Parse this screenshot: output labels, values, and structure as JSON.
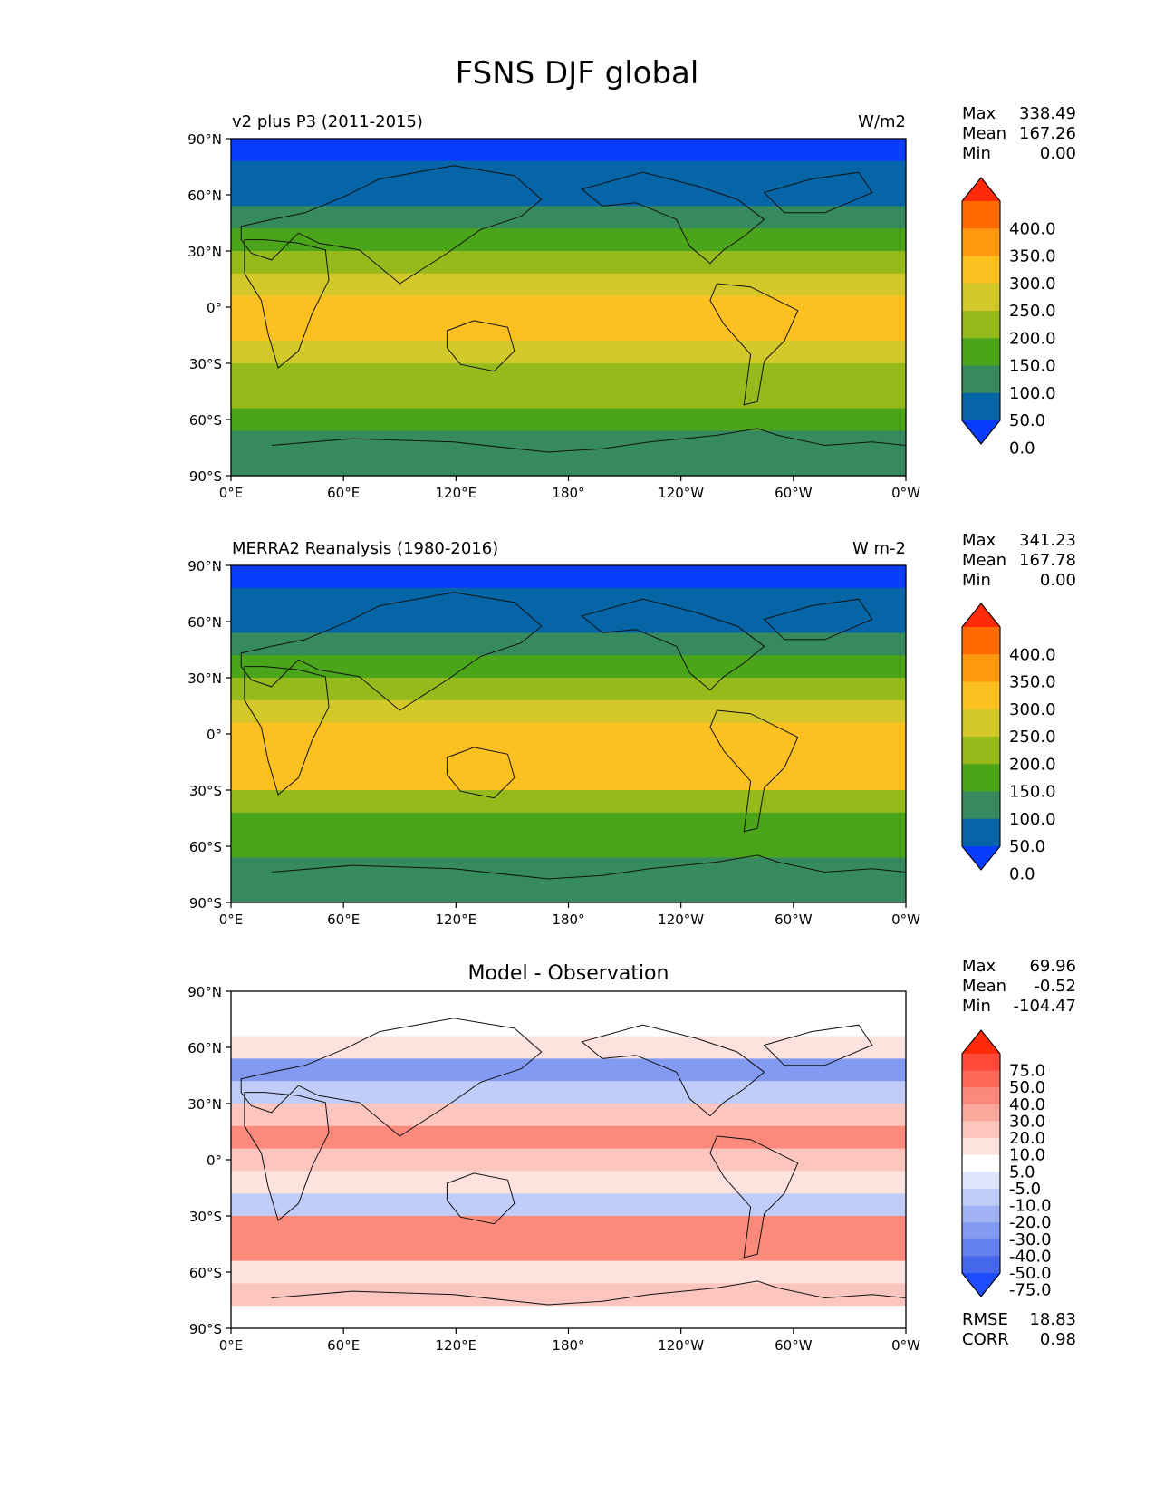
{
  "title": "FSNS DJF global",
  "panels": [
    {
      "left_title": "v2 plus P3 (2011-2015)",
      "right_title": "W/m2",
      "center_title": "",
      "stats": [
        [
          "Max",
          "338.49"
        ],
        [
          "Mean",
          "167.26"
        ],
        [
          "Min",
          "0.00"
        ]
      ],
      "colorbar": {
        "labels": [
          "400.0",
          "350.0",
          "300.0",
          "250.0",
          "200.0",
          "150.0",
          "100.0",
          "50.0",
          "0.0"
        ],
        "colors": [
          "#ff2a0a",
          "#ff6a00",
          "#ff9a10",
          "#fcc020",
          "#d3c82a",
          "#96b91c",
          "#4ba51a",
          "#368a5e",
          "#0565a6",
          "#0a3cff"
        ]
      },
      "bands": [
        "#0a3cff",
        "#0565a6",
        "#0565a6",
        "#368a5e",
        "#4ba51a",
        "#96b91c",
        "#d3c82a",
        "#fcc020",
        "#fcc020",
        "#d3c82a",
        "#96b91c",
        "#96b91c",
        "#4ba51a",
        "#368a5e",
        "#368a5e"
      ]
    },
    {
      "left_title": "MERRA2 Reanalysis (1980-2016)",
      "right_title": "W m-2",
      "center_title": "",
      "stats": [
        [
          "Max",
          "341.23"
        ],
        [
          "Mean",
          "167.78"
        ],
        [
          "Min",
          "0.00"
        ]
      ],
      "colorbar": {
        "labels": [
          "400.0",
          "350.0",
          "300.0",
          "250.0",
          "200.0",
          "150.0",
          "100.0",
          "50.0",
          "0.0"
        ],
        "colors": [
          "#ff2a0a",
          "#ff6a00",
          "#ff9a10",
          "#fcc020",
          "#d3c82a",
          "#96b91c",
          "#4ba51a",
          "#368a5e",
          "#0565a6",
          "#0a3cff"
        ]
      },
      "bands": [
        "#0a3cff",
        "#0565a6",
        "#0565a6",
        "#368a5e",
        "#4ba51a",
        "#96b91c",
        "#d3c82a",
        "#fcc020",
        "#fcc020",
        "#fcc020",
        "#96b91c",
        "#4ba51a",
        "#4ba51a",
        "#368a5e",
        "#368a5e"
      ]
    },
    {
      "left_title": "",
      "right_title": "",
      "center_title": "Model - Observation",
      "stats": [
        [
          "Max",
          "69.96"
        ],
        [
          "Mean",
          "-0.52"
        ],
        [
          "Min",
          "-104.47"
        ]
      ],
      "extra_stats": [
        [
          "RMSE",
          "18.83"
        ],
        [
          "CORR",
          "0.98"
        ]
      ],
      "colorbar": {
        "labels": [
          "75.0",
          "50.0",
          "40.0",
          "30.0",
          "20.0",
          "10.0",
          "5.0",
          "-5.0",
          "-10.0",
          "-20.0",
          "-30.0",
          "-40.0",
          "-50.0",
          "-75.0"
        ],
        "colors": [
          "#ff2a0a",
          "#ff4a38",
          "#fe6a5a",
          "#fc8a7c",
          "#fba89c",
          "#fcc6be",
          "#fde2de",
          "#ffffff",
          "#dfe6fc",
          "#c0cdf8",
          "#a1b3f5",
          "#829af2",
          "#6380ee",
          "#4467eb",
          "#1e4dff"
        ]
      },
      "bands": [
        "#ffffff",
        "#ffffff",
        "#fde2de",
        "#829af2",
        "#c0cdf8",
        "#fcc6be",
        "#fc8a7c",
        "#fcc6be",
        "#fde2de",
        "#c0cdf8",
        "#fc8a7c",
        "#fc8a7c",
        "#fde2de",
        "#fcc6be",
        "#ffffff"
      ]
    }
  ],
  "axes": {
    "y_ticks": [
      "90°N",
      "60°N",
      "30°N",
      "0°",
      "30°S",
      "60°S",
      "90°S"
    ],
    "x_ticks": [
      "0°E",
      "60°E",
      "120°E",
      "180°",
      "120°W",
      "60°W",
      "0°W"
    ]
  }
}
